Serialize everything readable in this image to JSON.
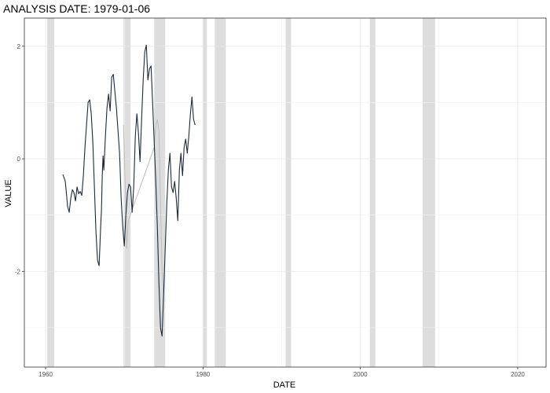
{
  "chart_data": {
    "type": "line",
    "title": "ANALYSIS DATE: 1979-01-06",
    "xlabel": "DATE",
    "ylabel": "VALUE",
    "xlim": [
      1957.3,
      2023.6
    ],
    "ylim": [
      -3.7,
      2.5
    ],
    "x_ticks": [
      1960,
      1980,
      2000,
      2020
    ],
    "x_tick_labels": [
      "1960",
      "1980",
      "2000",
      "2020"
    ],
    "y_ticks": [
      -2,
      0,
      2
    ],
    "y_tick_labels": [
      "-2",
      "0",
      "2"
    ],
    "grid": true,
    "recession_bands": [
      [
        1960.2,
        1961.1
      ],
      [
        1969.9,
        1970.8
      ],
      [
        1973.8,
        1975.2
      ],
      [
        1980.0,
        1980.5
      ],
      [
        1981.5,
        1982.9
      ],
      [
        1990.5,
        1991.2
      ],
      [
        2001.2,
        2001.9
      ],
      [
        2007.9,
        2009.5
      ]
    ],
    "colors": {
      "series": "#1c2b3a",
      "revised": "#bdbdbd",
      "band": "#dddddd",
      "grid_major": "#e6e6e6",
      "grid_minor": "#f2f2f2",
      "panel_border": "#333333"
    },
    "series": [
      {
        "values_x": [
          1962.2,
          1962.5,
          1962.8,
          1963.0,
          1963.2,
          1963.4,
          1963.6,
          1963.8,
          1964.0,
          1964.2,
          1964.4,
          1964.6,
          1964.8,
          1965.0,
          1965.2,
          1965.4,
          1965.6,
          1965.8,
          1966.0,
          1966.2,
          1966.4,
          1966.6,
          1966.8,
          1967.0,
          1967.1,
          1967.2,
          1967.3,
          1967.4,
          1967.6,
          1967.8,
          1968.0,
          1968.2,
          1968.4,
          1968.6,
          1968.8,
          1969.0,
          1969.2,
          1969.4,
          1969.6,
          1969.8,
          1970.0,
          1970.2,
          1970.4,
          1970.6,
          1970.8,
          1971.0,
          1971.2,
          1971.4,
          1971.6,
          1971.8,
          1972.0,
          1972.2,
          1972.4,
          1972.6,
          1972.8,
          1973.0,
          1973.2,
          1973.4,
          1973.6,
          1973.8,
          1974.0,
          1974.2,
          1974.4,
          1974.6,
          1974.8,
          1975.0,
          1975.2,
          1975.4,
          1975.6,
          1975.8,
          1976.0,
          1976.2,
          1976.4,
          1976.6,
          1976.8,
          1977.0,
          1977.2,
          1977.4,
          1977.6,
          1977.8,
          1978.0,
          1978.2,
          1978.4,
          1978.6,
          1978.8,
          1979.0
        ],
        "values_y": [
          -0.28,
          -0.4,
          -0.85,
          -0.95,
          -0.7,
          -0.55,
          -0.6,
          -0.75,
          -0.5,
          -0.62,
          -0.58,
          -0.65,
          -0.3,
          0.2,
          0.6,
          1.0,
          1.05,
          0.8,
          0.3,
          -0.5,
          -1.3,
          -1.8,
          -1.9,
          -1.2,
          -0.9,
          -0.3,
          0.05,
          -0.2,
          0.4,
          0.9,
          1.15,
          0.85,
          1.45,
          1.5,
          1.2,
          0.9,
          0.5,
          0.1,
          -0.7,
          -1.2,
          -1.55,
          -1.0,
          -0.6,
          -0.45,
          -0.5,
          -0.95,
          -0.5,
          0.4,
          0.8,
          0.45,
          -0.05,
          0.7,
          1.4,
          1.9,
          2.02,
          1.4,
          1.6,
          1.65,
          1.0,
          0.3,
          -0.4,
          -1.2,
          -2.2,
          -3.0,
          -3.15,
          -2.4,
          -1.6,
          -0.8,
          -0.2,
          0.1,
          -0.5,
          -0.6,
          -0.4,
          -0.7,
          -1.1,
          -0.2,
          0.1,
          -0.3,
          0.2,
          0.35,
          0.1,
          0.4,
          0.8,
          1.1,
          0.7,
          0.6
        ],
        "revised_x": [
          1969.9,
          1970.1,
          1970.3,
          1970.5,
          1973.8,
          1974.0,
          1974.2,
          1974.4,
          1974.6,
          1974.8,
          1975.0
        ],
        "revised_y": [
          0.6,
          -0.4,
          -1.6,
          -1.1,
          0.2,
          0.6,
          0.7,
          0.5,
          -0.8,
          -2.0,
          -2.4
        ]
      }
    ]
  }
}
